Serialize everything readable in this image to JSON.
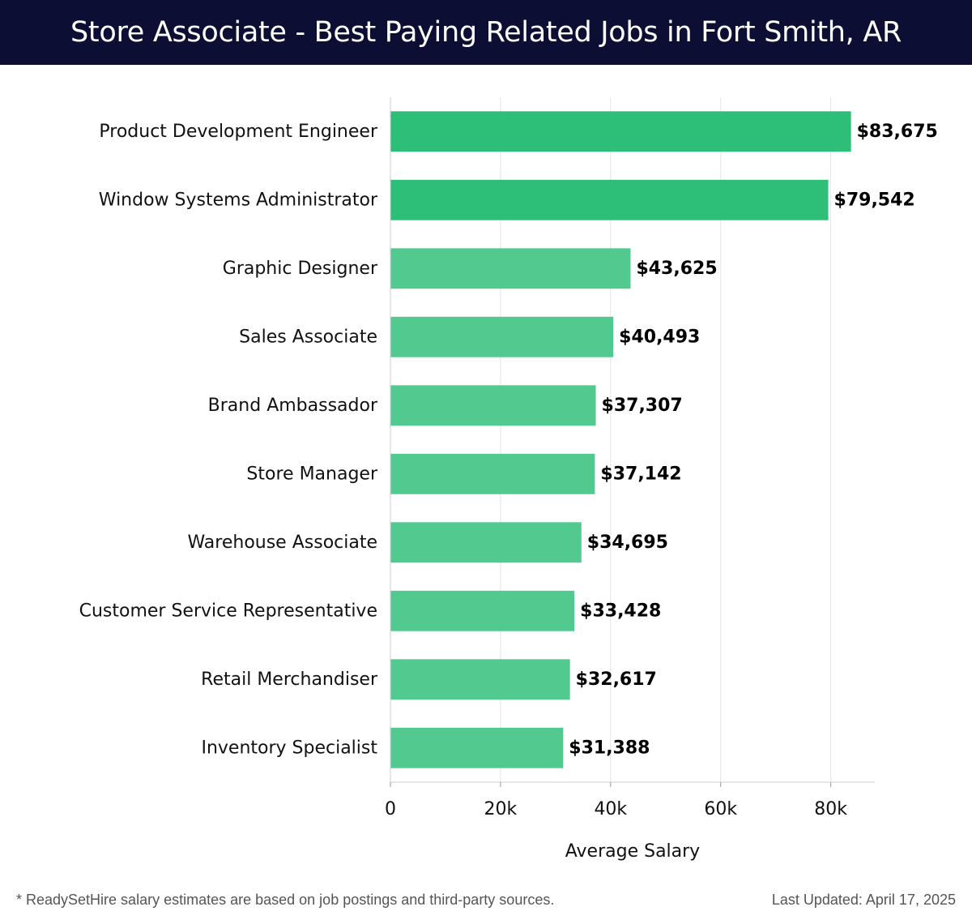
{
  "title": "Store Associate - Best Paying Related Jobs in Fort Smith, AR",
  "footer": {
    "note": "* ReadySetHire salary estimates are based on job postings and third-party sources.",
    "updated": "Last Updated: April 17, 2025"
  },
  "colors": {
    "header_bg": "#0c0f33",
    "bar_top": "#2dbf78",
    "bar_other": "#52c98f"
  },
  "chart_data": {
    "type": "bar",
    "orientation": "horizontal",
    "categories": [
      "Product Development Engineer",
      "Window Systems Administrator",
      "Graphic Designer",
      "Sales Associate",
      "Brand Ambassador",
      "Store Manager",
      "Warehouse Associate",
      "Customer Service Representative",
      "Retail Merchandiser",
      "Inventory Specialist"
    ],
    "values": [
      83675,
      79542,
      43625,
      40493,
      37307,
      37142,
      34695,
      33428,
      32617,
      31388
    ],
    "value_labels": [
      "$83,675",
      "$79,542",
      "$43,625",
      "$40,493",
      "$37,307",
      "$37,142",
      "$34,695",
      "$33,428",
      "$32,617",
      "$31,388"
    ],
    "xlabel": "Average Salary",
    "ylabel": "",
    "xlim": [
      0,
      88000
    ],
    "xticks": [
      0,
      20000,
      40000,
      60000,
      80000
    ],
    "xtick_labels": [
      "0",
      "20k",
      "40k",
      "60k",
      "80k"
    ],
    "grid": true
  }
}
